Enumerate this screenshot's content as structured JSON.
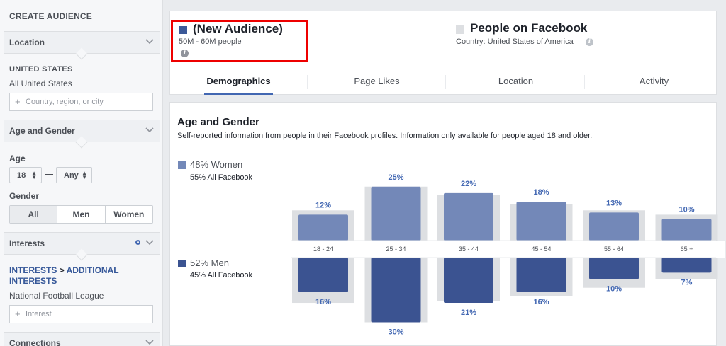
{
  "sidebar": {
    "title": "CREATE AUDIENCE",
    "location": {
      "header": "Location",
      "country_heading": "UNITED STATES",
      "country_value": "All United States",
      "input_placeholder": "Country, region, or city"
    },
    "age_gender": {
      "header": "Age and Gender",
      "age_label": "Age",
      "age_min": "18",
      "age_max": "Any",
      "gender_label": "Gender",
      "gender_options": [
        "All",
        "Men",
        "Women"
      ],
      "gender_selected": "All"
    },
    "interests": {
      "header": "Interests",
      "path_root": "INTERESTS",
      "path_sep": ">",
      "path_leaf": "ADDITIONAL INTERESTS",
      "value": "National Football League",
      "input_placeholder": "Interest"
    },
    "connections": {
      "header": "Connections"
    }
  },
  "audience": {
    "title": "(New Audience)",
    "size": "50M - 60M people",
    "color": "#3b5998"
  },
  "comparison": {
    "title": "People on Facebook",
    "country": "Country: United States of America"
  },
  "tabs": [
    "Demographics",
    "Page Likes",
    "Location",
    "Activity"
  ],
  "active_tab": "Demographics",
  "age_gender_card": {
    "title": "Age and Gender",
    "subtitle": "Self-reported information from people in their Facebook profiles. Information only available for people aged 18 and older.",
    "women_pct": "48% Women",
    "women_fb": "55% All Facebook",
    "men_pct": "52% Men",
    "men_fb": "45% All Facebook"
  },
  "colors": {
    "women_bar": "#7388b8",
    "men_bar": "#3b5391",
    "facebook_bar": "#dddfe2",
    "value_label": "#4267b2",
    "highlight": "#ee0000"
  },
  "chart_data": {
    "type": "bar",
    "categories": [
      "18 - 24",
      "25 - 34",
      "35 - 44",
      "45 - 54",
      "55 - 64",
      "65 +"
    ],
    "series": [
      {
        "name": "Women",
        "values": [
          12,
          25,
          22,
          18,
          13,
          10
        ],
        "labels": [
          "12%",
          "25%",
          "22%",
          "18%",
          "13%",
          "10%"
        ]
      },
      {
        "name": "Men",
        "values": [
          16,
          30,
          21,
          16,
          10,
          7
        ],
        "labels": [
          "16%",
          "30%",
          "21%",
          "16%",
          "10%",
          "7%"
        ]
      },
      {
        "name": "All Facebook Women",
        "values": [
          14,
          25,
          21,
          17,
          14,
          12
        ]
      },
      {
        "name": "All Facebook Men",
        "values": [
          21,
          30,
          20,
          18,
          14,
          10
        ]
      }
    ]
  }
}
